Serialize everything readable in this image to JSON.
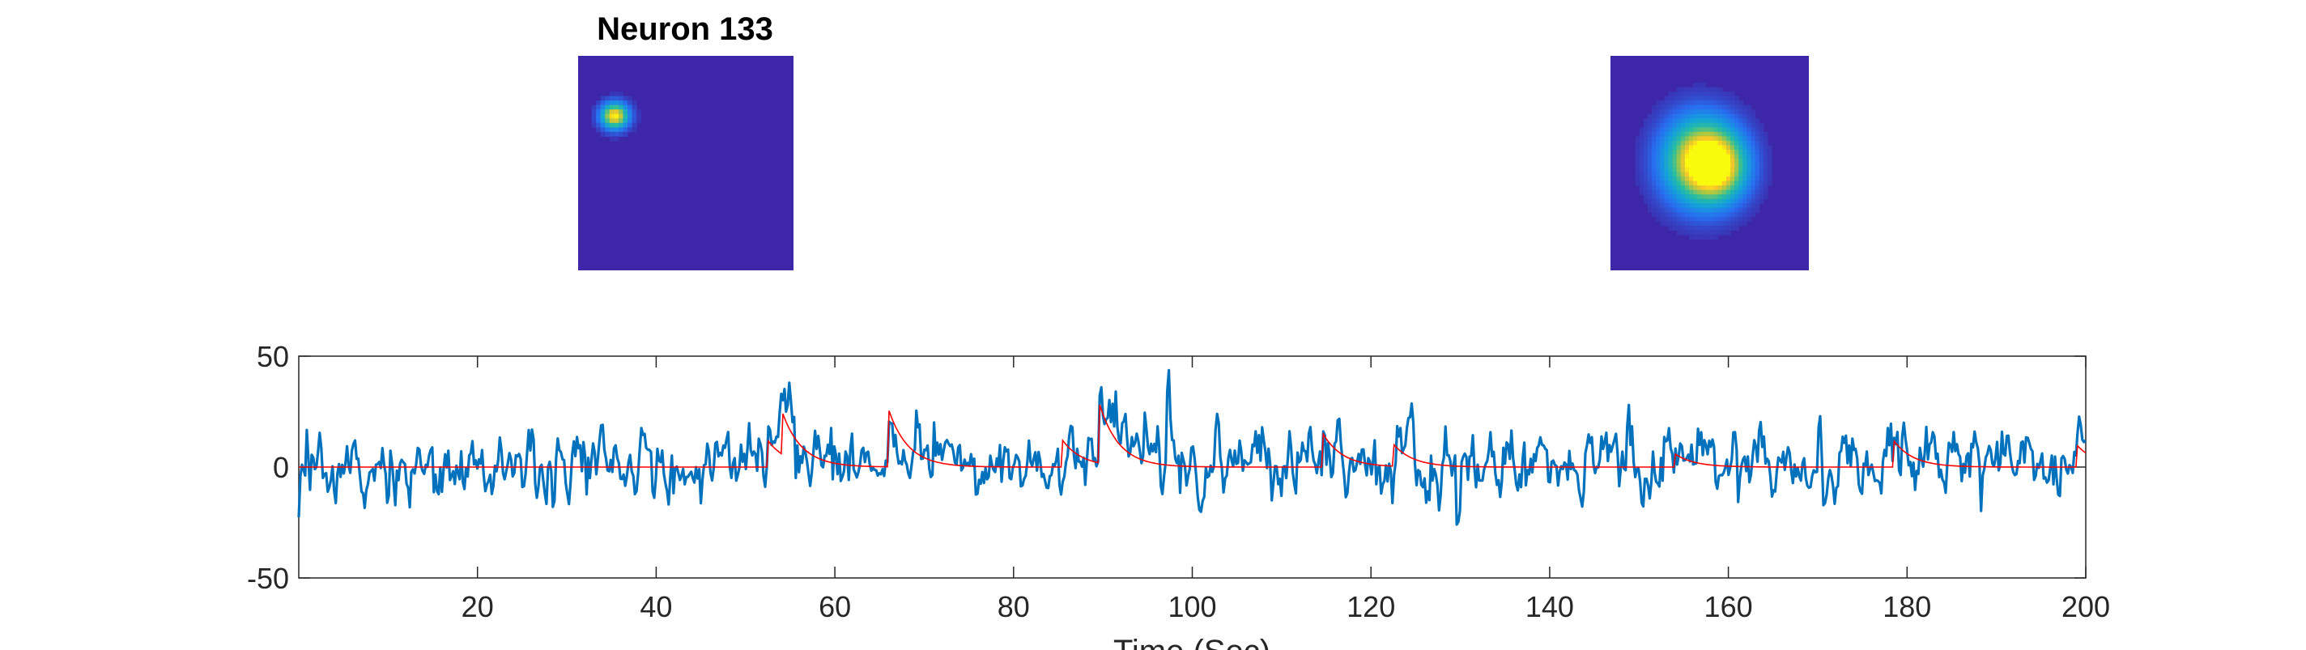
{
  "chart_data": [
    {
      "type": "heatmap",
      "title": "Neuron 133",
      "colormap": "parula",
      "background_color": "#3e26a8",
      "blobs": [
        {
          "cx": 0.17,
          "cy": 0.28,
          "sx": 0.045,
          "sy": 0.042,
          "peak": 1.0
        }
      ]
    },
    {
      "type": "heatmap",
      "title": "",
      "colormap": "parula",
      "background_color": "#3e26a8",
      "blobs": [
        {
          "cx": 0.45,
          "cy": 0.49,
          "sx": 0.13,
          "sy": 0.14,
          "peak": 1.0
        },
        {
          "cx": 0.56,
          "cy": 0.52,
          "sx": 0.1,
          "sy": 0.11,
          "peak": 0.55
        }
      ]
    },
    {
      "type": "line",
      "title": "",
      "xlabel": "Time (Sec)",
      "ylabel": "",
      "xlim": [
        0,
        200
      ],
      "ylim": [
        -50,
        50
      ],
      "xticks": [
        20,
        40,
        60,
        80,
        100,
        120,
        140,
        160,
        180,
        200
      ],
      "yticks": [
        -50,
        0,
        50
      ],
      "grid": false,
      "series": [
        {
          "color": "#0072bd",
          "kind": "raw trace",
          "noise_sd": 6.5,
          "seed": 133,
          "events": [
            {
              "t": 52.5,
              "amp": 12
            },
            {
              "t": 54.0,
              "amp": 20
            },
            {
              "t": 66.0,
              "amp": 26
            },
            {
              "t": 85.5,
              "amp": 12
            },
            {
              "t": 89.5,
              "amp": 28
            },
            {
              "t": 114.5,
              "amp": 16
            },
            {
              "t": 122.5,
              "amp": 10
            },
            {
              "t": 154.0,
              "amp": 6
            },
            {
              "t": 178.5,
              "amp": 12
            },
            {
              "t": 199.0,
              "amp": 10
            }
          ],
          "spikes": [
            {
              "t": 54.0,
              "v": 33
            },
            {
              "t": 89.8,
              "v": 37
            },
            {
              "t": 124.6,
              "v": 30
            },
            {
              "t": 170.2,
              "v": 29
            },
            {
              "t": 199.3,
              "v": 25
            },
            {
              "t": 143.6,
              "v": -20
            },
            {
              "t": 4.1,
              "v": -17
            },
            {
              "t": 39.7,
              "v": -18
            },
            {
              "t": 108.9,
              "v": -15
            }
          ]
        },
        {
          "color": "#ff0000",
          "kind": "denoised trace",
          "events": [
            {
              "t": 52.5,
              "amp": 12
            },
            {
              "t": 54.0,
              "amp": 20
            },
            {
              "t": 66.0,
              "amp": 26
            },
            {
              "t": 85.5,
              "amp": 12
            },
            {
              "t": 89.5,
              "amp": 28
            },
            {
              "t": 114.5,
              "amp": 16
            },
            {
              "t": 122.5,
              "amp": 10
            },
            {
              "t": 154.0,
              "amp": 6
            },
            {
              "t": 178.5,
              "amp": 12
            },
            {
              "t": 199.0,
              "amp": 10
            }
          ]
        }
      ]
    }
  ]
}
